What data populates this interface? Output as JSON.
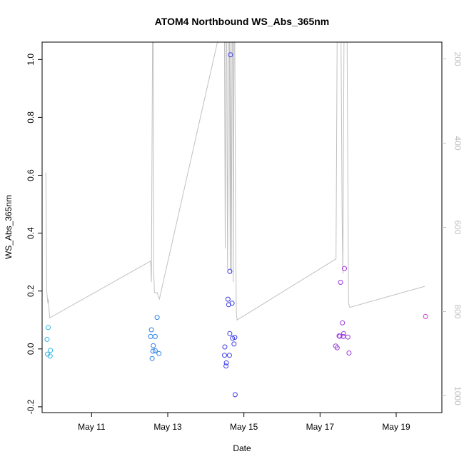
{
  "chart_data": {
    "type": "scatter",
    "title": "ATOM4 Northbound WS_Abs_365nm",
    "xlabel": "Date",
    "ylabel": "WS_Abs_365nm",
    "xlim": [
      9.7,
      20.2
    ],
    "ylim": [
      -0.22,
      1.06
    ],
    "x_unit": "day of May",
    "x_ticks": [
      {
        "x": 11,
        "label": "May 11"
      },
      {
        "x": 13,
        "label": "May 13"
      },
      {
        "x": 15,
        "label": "May 15"
      },
      {
        "x": 17,
        "label": "May 17"
      },
      {
        "x": 19,
        "label": "May 19"
      }
    ],
    "y_ticks": [
      {
        "y": -0.2,
        "label": "-0.2"
      },
      {
        "y": 0.0,
        "label": "0.0"
      },
      {
        "y": 0.2,
        "label": "0.2"
      },
      {
        "y": 0.4,
        "label": "0.4"
      },
      {
        "y": 0.6,
        "label": "0.6"
      },
      {
        "y": 0.8,
        "label": "0.8"
      },
      {
        "y": 1.0,
        "label": "1.0"
      }
    ],
    "secondary_axis": {
      "position": "right",
      "color": "#c0c0c0",
      "reversed": true,
      "range": [
        160,
        1040
      ],
      "ticks": [
        {
          "v": 200,
          "label": "200"
        },
        {
          "v": 400,
          "label": "400"
        },
        {
          "v": 600,
          "label": "600"
        },
        {
          "v": 800,
          "label": "800"
        },
        {
          "v": 1000,
          "label": "1000"
        }
      ]
    },
    "points": [
      {
        "x": 9.83,
        "y": 0.033,
        "color": "#29b6e8"
      },
      {
        "x": 9.86,
        "y": 0.074,
        "color": "#29b6e8"
      },
      {
        "x": 9.84,
        "y": -0.018,
        "color": "#29b6e8"
      },
      {
        "x": 9.92,
        "y": -0.005,
        "color": "#29b6e8"
      },
      {
        "x": 9.91,
        "y": -0.025,
        "color": "#29b6e8"
      },
      {
        "x": 12.57,
        "y": 0.066,
        "color": "#2b7fe6"
      },
      {
        "x": 12.55,
        "y": 0.043,
        "color": "#2b7fe6"
      },
      {
        "x": 12.67,
        "y": 0.043,
        "color": "#2b7fe6"
      },
      {
        "x": 12.72,
        "y": 0.109,
        "color": "#2b7fe6"
      },
      {
        "x": 12.62,
        "y": 0.011,
        "color": "#2b7fe6"
      },
      {
        "x": 12.61,
        "y": -0.008,
        "color": "#2b7fe6"
      },
      {
        "x": 12.67,
        "y": -0.006,
        "color": "#2b7fe6"
      },
      {
        "x": 12.77,
        "y": -0.016,
        "color": "#2b7fe6"
      },
      {
        "x": 12.59,
        "y": -0.033,
        "color": "#2b7fe6"
      },
      {
        "x": 14.65,
        "y": 1.016,
        "color": "#3a3ae6"
      },
      {
        "x": 14.63,
        "y": 0.268,
        "color": "#3a3ae6"
      },
      {
        "x": 14.58,
        "y": 0.172,
        "color": "#3a3ae6"
      },
      {
        "x": 14.69,
        "y": 0.158,
        "color": "#3a3ae6"
      },
      {
        "x": 14.6,
        "y": 0.153,
        "color": "#3a3ae6"
      },
      {
        "x": 14.63,
        "y": 0.053,
        "color": "#3a3ae6"
      },
      {
        "x": 14.76,
        "y": 0.04,
        "color": "#3a3ae6"
      },
      {
        "x": 14.7,
        "y": 0.037,
        "color": "#3a3ae6"
      },
      {
        "x": 14.74,
        "y": 0.017,
        "color": "#3a3ae6"
      },
      {
        "x": 14.5,
        "y": 0.007,
        "color": "#3a3ae6"
      },
      {
        "x": 14.49,
        "y": -0.022,
        "color": "#3a3ae6"
      },
      {
        "x": 14.62,
        "y": -0.022,
        "color": "#3a3ae6"
      },
      {
        "x": 14.54,
        "y": -0.048,
        "color": "#3a3ae6"
      },
      {
        "x": 14.53,
        "y": -0.059,
        "color": "#3a3ae6"
      },
      {
        "x": 14.77,
        "y": -0.158,
        "color": "#3a3ae6"
      },
      {
        "x": 17.64,
        "y": 0.278,
        "color": "#9b35e0"
      },
      {
        "x": 17.54,
        "y": 0.23,
        "color": "#9b35e0"
      },
      {
        "x": 17.59,
        "y": 0.09,
        "color": "#9b35e0"
      },
      {
        "x": 17.62,
        "y": 0.053,
        "color": "#9b35e0"
      },
      {
        "x": 17.5,
        "y": 0.045,
        "color": "#9b35e0"
      },
      {
        "x": 17.52,
        "y": 0.044,
        "color": "#9b35e0"
      },
      {
        "x": 17.61,
        "y": 0.043,
        "color": "#9b35e0"
      },
      {
        "x": 17.73,
        "y": 0.041,
        "color": "#9b35e0"
      },
      {
        "x": 17.41,
        "y": 0.01,
        "color": "#9b35e0"
      },
      {
        "x": 17.45,
        "y": 0.004,
        "color": "#9b35e0"
      },
      {
        "x": 17.76,
        "y": -0.014,
        "color": "#9b35e0"
      },
      {
        "x": 19.77,
        "y": 0.112,
        "color": "#d43bd9"
      }
    ],
    "secondary_series": {
      "color": "#c0c0c0",
      "style": "line",
      "x": [
        9.8,
        9.82,
        9.85,
        9.86,
        9.9,
        12.55,
        12.56,
        12.57,
        12.6,
        12.62,
        12.63,
        12.65,
        12.72,
        12.78,
        14.33,
        14.37,
        14.39,
        14.41,
        14.43,
        14.45,
        14.47,
        14.48,
        14.49,
        14.51,
        14.53,
        14.55,
        14.57,
        14.6,
        14.62,
        14.64,
        14.65,
        14.67,
        14.69,
        14.71,
        14.72,
        14.74,
        14.76,
        14.78,
        14.8,
        14.82,
        17.42,
        17.45,
        17.47,
        17.49,
        17.52,
        17.55,
        17.58,
        17.6,
        17.63,
        17.65,
        17.68,
        17.71,
        17.75,
        17.78,
        19.75
      ],
      "y": [
        470,
        750,
        780,
        770,
        815,
        680,
        700,
        730,
        150,
        150,
        700,
        755,
        755,
        770,
        150,
        150,
        150,
        150,
        150,
        150,
        150,
        150,
        150,
        650,
        150,
        150,
        700,
        150,
        150,
        700,
        150,
        710,
        150,
        150,
        730,
        150,
        150,
        550,
        800,
        820,
        675,
        150,
        150,
        150,
        150,
        150,
        580,
        710,
        150,
        150,
        150,
        150,
        780,
        790,
        740
      ]
    }
  }
}
